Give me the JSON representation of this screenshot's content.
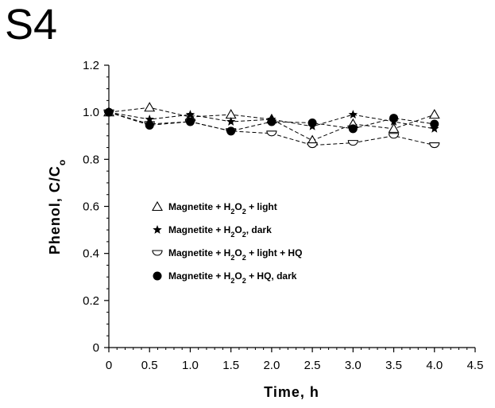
{
  "panel_label": "S4",
  "chart_data": {
    "type": "line",
    "title": "",
    "xlabel": "Time, h",
    "ylabel": {
      "main": "Phenol, C/C",
      "sub": "o"
    },
    "xlim": [
      0,
      4.5
    ],
    "ylim": [
      0,
      1.2
    ],
    "xticks": [
      "0",
      "0.5",
      "1.0",
      "1.5",
      "2.0",
      "2.5",
      "3.0",
      "3.5",
      "4.0",
      "4.5"
    ],
    "yticks": [
      "0",
      "0.2",
      "0.4",
      "0.6",
      "0.8",
      "1.0",
      "1.2"
    ],
    "line_style": "dashed",
    "grid": false,
    "legend_position": "center-left",
    "series": [
      {
        "name": "Magnetite + H2O2 + light",
        "legend": [
          {
            "t": "Magnetite  +  H"
          },
          {
            "t": "2",
            "sub": true
          },
          {
            "t": "O"
          },
          {
            "t": "2",
            "sub": true
          },
          {
            "t": "  +  light"
          }
        ],
        "marker": "open-triangle",
        "x": [
          0,
          0.5,
          1.0,
          1.5,
          2.0,
          2.5,
          3.0,
          3.5,
          4.0
        ],
        "y": [
          1.0,
          1.02,
          0.98,
          0.99,
          0.97,
          0.88,
          0.95,
          0.93,
          0.99
        ]
      },
      {
        "name": "Magnetite + H2O2, dark",
        "legend": [
          {
            "t": "Magnetite  +  H"
          },
          {
            "t": "2",
            "sub": true
          },
          {
            "t": "O"
          },
          {
            "t": "2",
            "sub": true
          },
          {
            "t": ",  dark"
          }
        ],
        "marker": "star",
        "x": [
          0,
          0.5,
          1.0,
          1.5,
          2.0,
          2.5,
          3.0,
          3.5,
          4.0
        ],
        "y": [
          1.0,
          0.97,
          0.99,
          0.96,
          0.97,
          0.94,
          0.99,
          0.96,
          0.93
        ]
      },
      {
        "name": "Magnetite + H2O2 + light + HQ",
        "legend": [
          {
            "t": "Magnetite  +  H"
          },
          {
            "t": "2",
            "sub": true
          },
          {
            "t": "O"
          },
          {
            "t": "2",
            "sub": true
          },
          {
            "t": "  +  light  +  HQ"
          }
        ],
        "marker": "open-down-triangle",
        "x": [
          0,
          0.5,
          1.0,
          1.5,
          2.0,
          2.5,
          3.0,
          3.5,
          4.0
        ],
        "y": [
          1.0,
          0.95,
          0.96,
          0.92,
          0.91,
          0.86,
          0.87,
          0.9,
          0.86
        ]
      },
      {
        "name": "Magnetite + H2O2 + HQ, dark",
        "legend": [
          {
            "t": "Magnetite  +  H"
          },
          {
            "t": "2",
            "sub": true
          },
          {
            "t": "O"
          },
          {
            "t": "2",
            "sub": true
          },
          {
            "t": "  +  HQ,  dark"
          }
        ],
        "marker": "filled-circle",
        "x": [
          0,
          0.5,
          1.0,
          1.5,
          2.0,
          2.5,
          3.0,
          3.5,
          4.0
        ],
        "y": [
          1.0,
          0.945,
          0.96,
          0.92,
          0.96,
          0.955,
          0.93,
          0.975,
          0.95
        ]
      }
    ]
  }
}
